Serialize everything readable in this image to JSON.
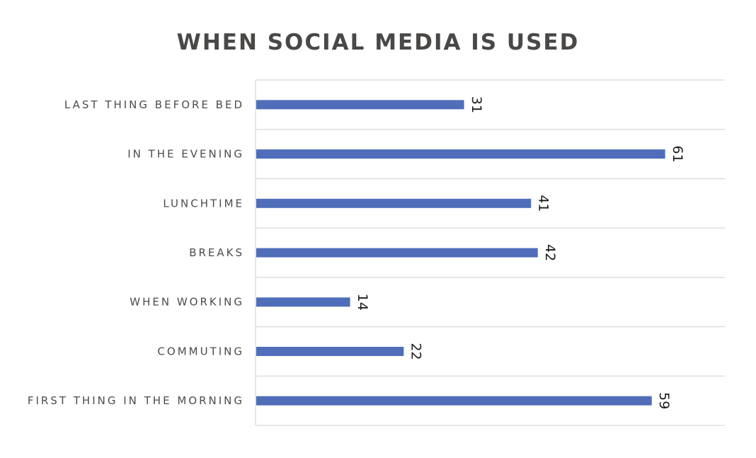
{
  "chart_data": {
    "type": "bar",
    "orientation": "horizontal",
    "title": "WHEN SOCIAL MEDIA IS USED",
    "categories": [
      "LAST THING BEFORE BED",
      "IN THE EVENING",
      "LUNCHTIME",
      "BREAKS",
      "WHEN WORKING",
      "COMMUTING",
      "FIRST THING IN THE MORNING"
    ],
    "values": [
      31,
      61,
      41,
      42,
      14,
      22,
      59
    ],
    "data_labels": [
      "31",
      "61",
      "41",
      "42",
      "14",
      "22",
      "59"
    ],
    "xlim": [
      0,
      70
    ],
    "grid": true,
    "legend": "none",
    "bar_color": "#4f6db8",
    "grid_color": "#d9d9d9"
  }
}
